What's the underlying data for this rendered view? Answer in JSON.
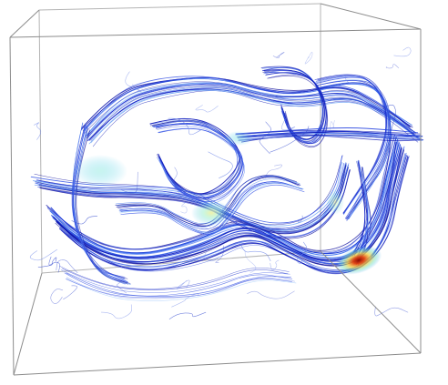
{
  "figure": {
    "kind": "3d-streamline-visualization",
    "background_color": "#ffffff",
    "box_edge_color": "#9a9a9a",
    "colormap": [
      "#1414c8",
      "#1e50e6",
      "#30b8f0",
      "#a8f0a0",
      "#f0e040",
      "#e85010",
      "#a01008"
    ],
    "hotspots": [
      {
        "name": "lower-right-peak",
        "intensity": 1.0
      },
      {
        "name": "center-glow",
        "intensity": 0.45
      },
      {
        "name": "left-glow",
        "intensity": 0.35
      }
    ]
  }
}
